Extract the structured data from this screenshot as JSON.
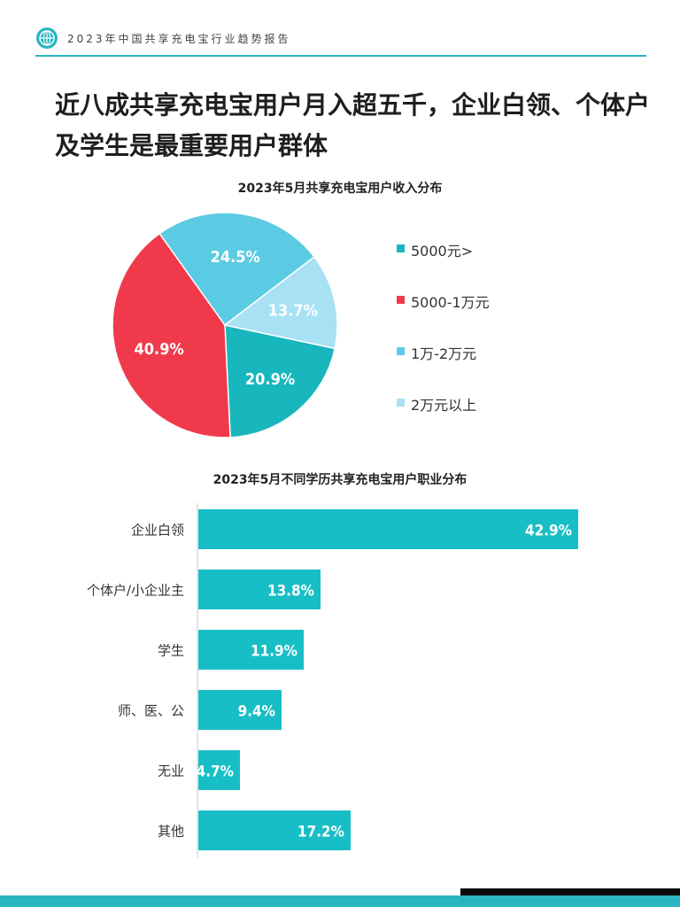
{
  "header": {
    "report_title": "2023年中国共享充电宝行业趋势报告",
    "logo_icon": "globe-icon"
  },
  "page_title": "近八成共享充电宝用户月入超五千，企业白领、个体户及学生是最重要用户群体",
  "chart_data": [
    {
      "type": "pie",
      "title": "2023年5月共享充电宝用户收入分布",
      "categories": [
        "5000元>",
        "5000-1万元",
        "1万-2万元",
        "2万元以上"
      ],
      "values": [
        20.9,
        40.9,
        24.5,
        13.7
      ],
      "labels": [
        "20.9%",
        "40.9%",
        "24.5%",
        "13.7%"
      ],
      "colors": [
        "#18b7bd",
        "#f03a4c",
        "#5bcbe4",
        "#a8e1f4"
      ],
      "legend_position": "right"
    },
    {
      "type": "bar",
      "orientation": "horizontal",
      "title": "2023年5月不同学历共享充电宝用户职业分布",
      "categories": [
        "企业白领",
        "个体户/小企业主",
        "学生",
        "师、医、公",
        "无业",
        "其他"
      ],
      "values": [
        42.9,
        13.8,
        11.9,
        9.4,
        4.7,
        17.2
      ],
      "labels": [
        "42.9%",
        "13.8%",
        "11.9%",
        "9.4%",
        "4.7%",
        "17.2%"
      ],
      "color": "#18bec5",
      "xlim": [
        0,
        45
      ]
    }
  ]
}
